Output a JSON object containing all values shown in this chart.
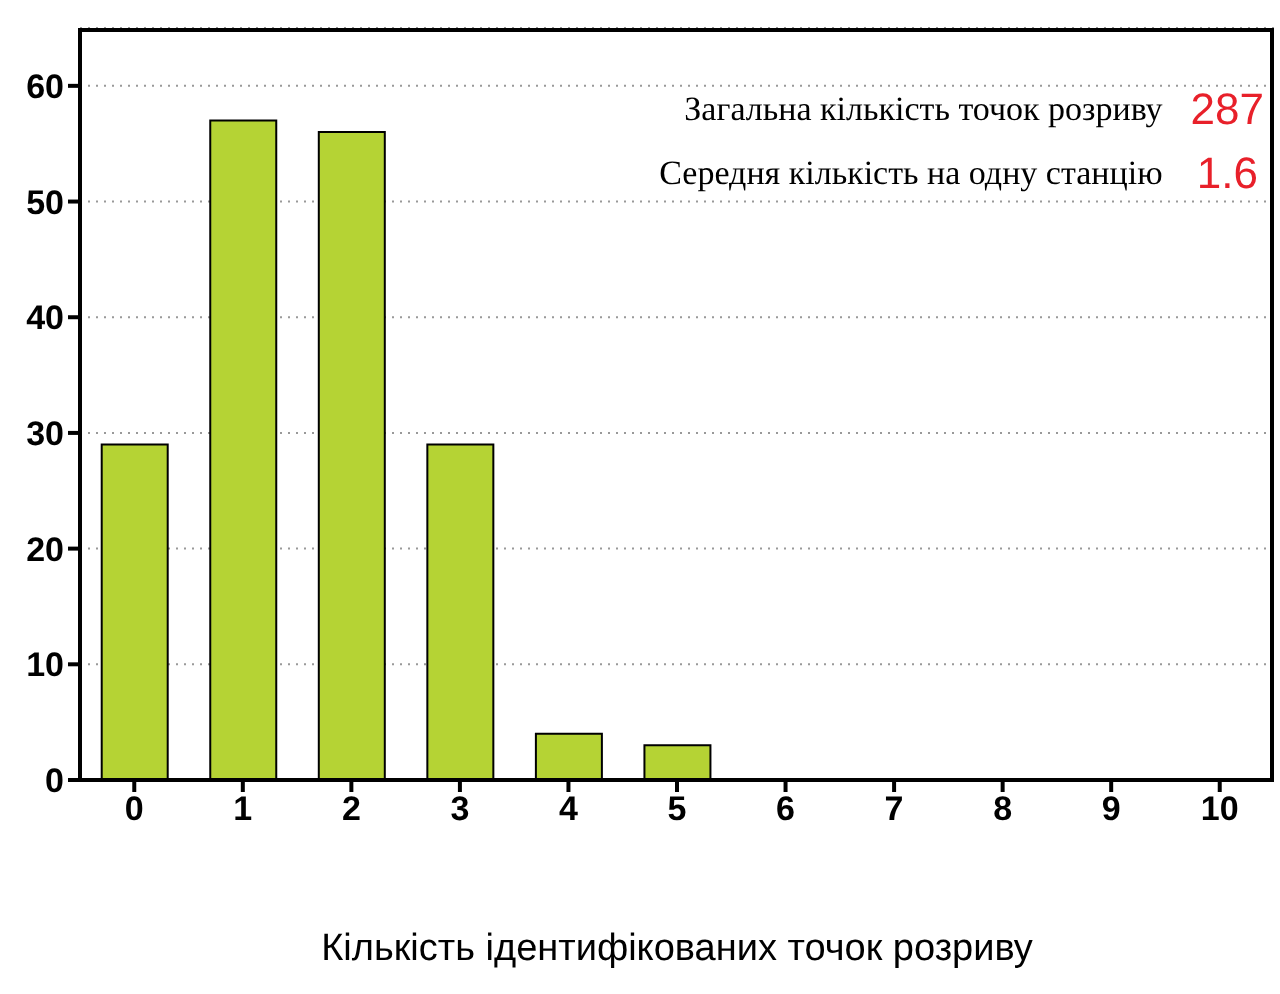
{
  "chart_data": {
    "type": "bar",
    "xlabel": "Кількість ідентифікованих точок розриву",
    "categories": [
      "0",
      "1",
      "2",
      "3",
      "4",
      "5",
      "6",
      "7",
      "8",
      "9",
      "10"
    ],
    "values": [
      29,
      57,
      56,
      29,
      4,
      3,
      0,
      0,
      0,
      0,
      0
    ],
    "color": "#b5d334",
    "ylim": [
      0,
      65
    ],
    "yticks": [
      0,
      10,
      20,
      30,
      40,
      50,
      60
    ],
    "grid": "y",
    "annotations": [
      "Загальна кількість точок розриву",
      "287",
      "Середня кількість на одну станцію",
      "1.6"
    ]
  }
}
